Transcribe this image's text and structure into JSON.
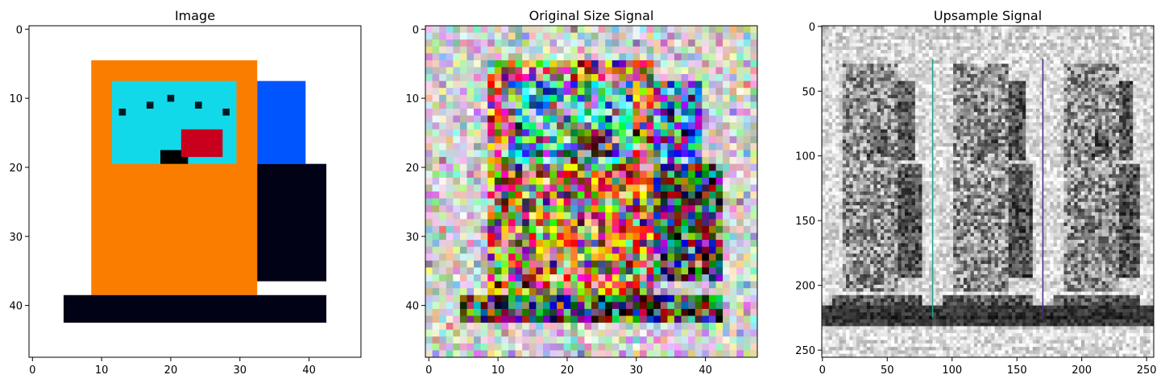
{
  "chart_data": [
    {
      "type": "heatmap",
      "title": "Image",
      "xlim": [
        -0.5,
        47.5
      ],
      "ylim": [
        47.5,
        -0.5
      ],
      "xticks": [
        0,
        10,
        20,
        30,
        40
      ],
      "yticks": [
        0,
        10,
        20,
        30,
        40
      ],
      "background": "#ffffff",
      "regions": [
        {
          "name": "pump-body",
          "color": "#fb7d00",
          "x": [
            8.5,
            32.5
          ],
          "y": [
            4.5,
            38.5
          ]
        },
        {
          "name": "gauge",
          "color": "#12d9ea",
          "x": [
            11.5,
            29.5
          ],
          "y": [
            7.5,
            19.5
          ]
        },
        {
          "name": "hose-upper",
          "color": "#0055ff",
          "x": [
            32.5,
            39.5
          ],
          "y": [
            7.5,
            19.5
          ]
        },
        {
          "name": "hose-lower",
          "color": "#020216",
          "x": [
            32.5,
            42.5
          ],
          "y": [
            19.5,
            36.5
          ]
        },
        {
          "name": "base",
          "color": "#020216",
          "x": [
            4.5,
            42.5
          ],
          "y": [
            38.5,
            42.5
          ]
        },
        {
          "name": "needle-hub",
          "color": "#000000",
          "x": [
            18.5,
            22.5
          ],
          "y": [
            17.5,
            19.5
          ]
        },
        {
          "name": "needle",
          "color": "#c8001e",
          "x": [
            21.5,
            27.5
          ],
          "y": [
            14.5,
            18.5
          ]
        }
      ]
    },
    {
      "type": "heatmap",
      "title": "Original Size Signal",
      "xlim": [
        -0.5,
        47.5
      ],
      "ylim": [
        47.5,
        -0.5
      ],
      "xticks": [
        0,
        10,
        20,
        30,
        40
      ],
      "yticks": [
        0,
        10,
        20,
        30,
        40
      ],
      "grid_size": [
        48,
        48
      ],
      "colormap": "noisy-rgb"
    },
    {
      "type": "heatmap",
      "title": "Upsample Signal",
      "xlim": [
        -0.5,
        255.5
      ],
      "ylim": [
        255.5,
        -0.5
      ],
      "xticks": [
        0,
        50,
        100,
        150,
        200,
        250
      ],
      "yticks": [
        0,
        50,
        100,
        150,
        200,
        250
      ],
      "grid_size": [
        256,
        256
      ],
      "colormap": "gray"
    }
  ]
}
